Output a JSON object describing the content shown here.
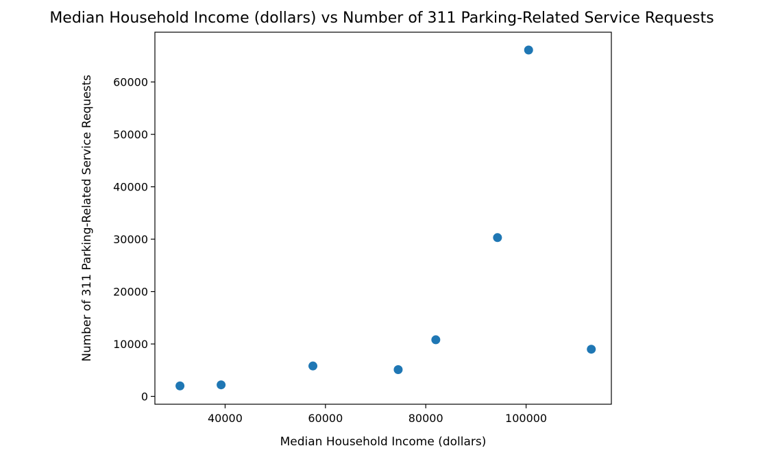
{
  "chart_data": {
    "type": "scatter",
    "title": "Median Household Income (dollars) vs Number of 311 Parking-Related Service Requests",
    "xlabel": "Median Household Income (dollars)",
    "ylabel": "Number of 311 Parking-Related Service Requests",
    "xlim": [
      26000,
      117000
    ],
    "ylim": [
      -1500,
      69500
    ],
    "xticks": [
      40000,
      60000,
      80000,
      100000
    ],
    "yticks": [
      0,
      10000,
      20000,
      30000,
      40000,
      50000,
      60000
    ],
    "grid": false,
    "marker_color": "#1f77b4",
    "points": [
      {
        "x": 31000,
        "y": 2000
      },
      {
        "x": 39200,
        "y": 2200
      },
      {
        "x": 57500,
        "y": 5800
      },
      {
        "x": 74500,
        "y": 5100
      },
      {
        "x": 82000,
        "y": 10800
      },
      {
        "x": 94300,
        "y": 30300
      },
      {
        "x": 100500,
        "y": 66100
      },
      {
        "x": 113000,
        "y": 9000
      }
    ]
  }
}
